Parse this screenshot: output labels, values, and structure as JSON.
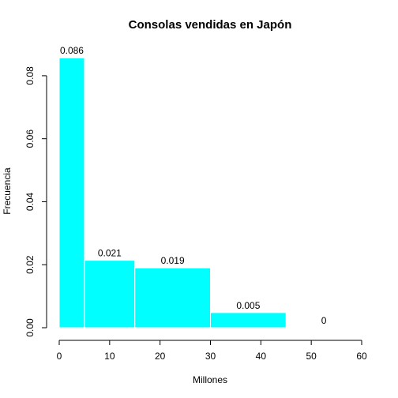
{
  "chart_data": {
    "type": "histogram",
    "title": "Consolas vendidas en Japón",
    "xlabel": "Millones",
    "ylabel": "Frecuencia",
    "bins": [
      {
        "start": 0,
        "end": 5,
        "value": 0.0857,
        "label": "0.086"
      },
      {
        "start": 5,
        "end": 15,
        "value": 0.0214,
        "label": "0.021"
      },
      {
        "start": 15,
        "end": 30,
        "value": 0.019,
        "label": "0.019"
      },
      {
        "start": 30,
        "end": 45,
        "value": 0.0048,
        "label": "0.005"
      },
      {
        "start": 45,
        "end": 60,
        "value": 0.0,
        "label": "0"
      }
    ],
    "xlim": [
      0,
      60
    ],
    "ylim": [
      0,
      0.088
    ],
    "xticks": [
      0,
      10,
      20,
      30,
      40,
      50,
      60
    ],
    "yticks": [
      0.0,
      0.02,
      0.04,
      0.06,
      0.08
    ],
    "ytick_labels": [
      "0.00",
      "0.02",
      "0.04",
      "0.06",
      "0.08"
    ],
    "colors": {
      "bar_fill": "#00ffff",
      "bar_border": "#ffffff"
    }
  }
}
